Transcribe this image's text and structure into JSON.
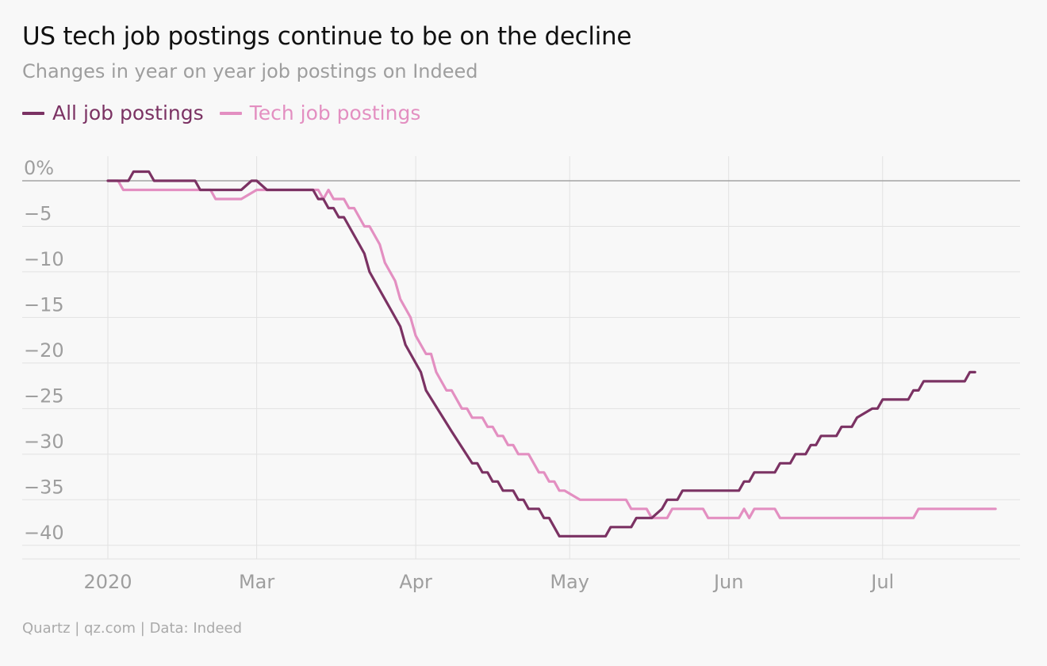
{
  "header": {
    "title": "US tech job postings continue to be on the decline",
    "subtitle": "Changes in year on year job postings on Indeed"
  },
  "footer": {
    "credit": "Quartz | qz.com | Data: Indeed"
  },
  "colors": {
    "all": "#7b3263",
    "tech": "#e38fc1",
    "grid": "#e2e2e2",
    "zero": "#a4a4a4",
    "axis_text": "#9e9e9e",
    "background": "#f8f8f8"
  },
  "chart_data": {
    "type": "line",
    "title": "US tech job postings continue to be on the decline",
    "subtitle": "Changes in year on year job postings on Indeed",
    "xlabel": "",
    "ylabel": "",
    "x_range": [
      "2020-02-01",
      "2020-07-25"
    ],
    "ylim": [
      -41.5,
      2
    ],
    "y_ticks": [
      0,
      -5,
      -10,
      -15,
      -20,
      -25,
      -30,
      -35,
      -40
    ],
    "y_tick_labels": [
      "0%",
      "−5",
      "−10",
      "−15",
      "−20",
      "−25",
      "−30",
      "−35",
      "−40"
    ],
    "x_ticks": [
      "2020-02-01",
      "2020-03-01",
      "2020-04-01",
      "2020-05-01",
      "2020-06-01",
      "2020-07-01"
    ],
    "x_tick_labels": [
      "2020",
      "Mar",
      "Apr",
      "May",
      "Jun",
      "Jul"
    ],
    "grid": true,
    "legend": "top-left",
    "series": [
      {
        "name": "All job postings",
        "color": "#7b3263",
        "points": [
          [
            "2020-02-01",
            0
          ],
          [
            "2020-02-05",
            0
          ],
          [
            "2020-02-06",
            1
          ],
          [
            "2020-02-09",
            1
          ],
          [
            "2020-02-10",
            0
          ],
          [
            "2020-02-18",
            0
          ],
          [
            "2020-02-19",
            -1
          ],
          [
            "2020-02-27",
            -1
          ],
          [
            "2020-02-29",
            0
          ],
          [
            "2020-03-01",
            0
          ],
          [
            "2020-03-03",
            -1
          ],
          [
            "2020-03-12",
            -1
          ],
          [
            "2020-03-13",
            -2
          ],
          [
            "2020-03-14",
            -2
          ],
          [
            "2020-03-15",
            -3
          ],
          [
            "2020-03-16",
            -3
          ],
          [
            "2020-03-17",
            -4
          ],
          [
            "2020-03-18",
            -4
          ],
          [
            "2020-03-21",
            -7
          ],
          [
            "2020-03-22",
            -8
          ],
          [
            "2020-03-23",
            -10
          ],
          [
            "2020-03-25",
            -12
          ],
          [
            "2020-03-27",
            -14
          ],
          [
            "2020-03-29",
            -16
          ],
          [
            "2020-03-30",
            -18
          ],
          [
            "2020-04-01",
            -20
          ],
          [
            "2020-04-02",
            -21
          ],
          [
            "2020-04-03",
            -23
          ],
          [
            "2020-04-08",
            -27.5
          ],
          [
            "2020-04-12",
            -31
          ],
          [
            "2020-04-13",
            -31
          ],
          [
            "2020-04-14",
            -32
          ],
          [
            "2020-04-15",
            -32
          ],
          [
            "2020-04-16",
            -33
          ],
          [
            "2020-04-17",
            -33
          ],
          [
            "2020-04-18",
            -34
          ],
          [
            "2020-04-20",
            -34
          ],
          [
            "2020-04-21",
            -35
          ],
          [
            "2020-04-22",
            -35
          ],
          [
            "2020-04-23",
            -36
          ],
          [
            "2020-04-25",
            -36
          ],
          [
            "2020-04-26",
            -37
          ],
          [
            "2020-04-27",
            -37
          ],
          [
            "2020-04-29",
            -39
          ],
          [
            "2020-05-08",
            -39
          ],
          [
            "2020-05-09",
            -38
          ],
          [
            "2020-05-13",
            -38
          ],
          [
            "2020-05-14",
            -37
          ],
          [
            "2020-05-17",
            -37
          ],
          [
            "2020-05-19",
            -36
          ],
          [
            "2020-05-20",
            -35
          ],
          [
            "2020-05-22",
            -35
          ],
          [
            "2020-05-23",
            -34
          ],
          [
            "2020-05-30",
            -34
          ],
          [
            "2020-06-03",
            -34
          ],
          [
            "2020-06-04",
            -33
          ],
          [
            "2020-06-05",
            -33
          ],
          [
            "2020-06-06",
            -32
          ],
          [
            "2020-06-10",
            -32
          ],
          [
            "2020-06-11",
            -31
          ],
          [
            "2020-06-13",
            -31
          ],
          [
            "2020-06-14",
            -30
          ],
          [
            "2020-06-16",
            -30
          ],
          [
            "2020-06-17",
            -29
          ],
          [
            "2020-06-18",
            -29
          ],
          [
            "2020-06-19",
            -28
          ],
          [
            "2020-06-22",
            -28
          ],
          [
            "2020-06-23",
            -27
          ],
          [
            "2020-06-25",
            -27
          ],
          [
            "2020-06-26",
            -26
          ],
          [
            "2020-06-29",
            -25
          ],
          [
            "2020-06-30",
            -25
          ],
          [
            "2020-07-01",
            -24
          ],
          [
            "2020-07-06",
            -24
          ],
          [
            "2020-07-07",
            -23
          ],
          [
            "2020-07-08",
            -23
          ],
          [
            "2020-07-09",
            -22
          ],
          [
            "2020-07-17",
            -22
          ],
          [
            "2020-07-18",
            -21
          ],
          [
            "2020-07-19",
            -21
          ]
        ]
      },
      {
        "name": "Tech job postings",
        "color": "#e38fc1",
        "points": [
          [
            "2020-02-01",
            0
          ],
          [
            "2020-02-03",
            0
          ],
          [
            "2020-02-04",
            -1
          ],
          [
            "2020-02-21",
            -1
          ],
          [
            "2020-02-22",
            -2
          ],
          [
            "2020-02-27",
            -2
          ],
          [
            "2020-03-01",
            -1
          ],
          [
            "2020-03-13",
            -1
          ],
          [
            "2020-03-14",
            -2
          ],
          [
            "2020-03-15",
            -1
          ],
          [
            "2020-03-16",
            -2
          ],
          [
            "2020-03-18",
            -2
          ],
          [
            "2020-03-19",
            -3
          ],
          [
            "2020-03-20",
            -3
          ],
          [
            "2020-03-22",
            -5
          ],
          [
            "2020-03-23",
            -5
          ],
          [
            "2020-03-25",
            -7
          ],
          [
            "2020-03-26",
            -9
          ],
          [
            "2020-03-28",
            -11
          ],
          [
            "2020-03-29",
            -13
          ],
          [
            "2020-03-31",
            -15
          ],
          [
            "2020-04-01",
            -17
          ],
          [
            "2020-04-03",
            -19
          ],
          [
            "2020-04-04",
            -19
          ],
          [
            "2020-04-05",
            -21
          ],
          [
            "2020-04-07",
            -23
          ],
          [
            "2020-04-08",
            -23
          ],
          [
            "2020-04-10",
            -25
          ],
          [
            "2020-04-11",
            -25
          ],
          [
            "2020-04-12",
            -26
          ],
          [
            "2020-04-14",
            -26
          ],
          [
            "2020-04-15",
            -27
          ],
          [
            "2020-04-16",
            -27
          ],
          [
            "2020-04-17",
            -28
          ],
          [
            "2020-04-18",
            -28
          ],
          [
            "2020-04-19",
            -29
          ],
          [
            "2020-04-20",
            -29
          ],
          [
            "2020-04-21",
            -30
          ],
          [
            "2020-04-23",
            -30
          ],
          [
            "2020-04-25",
            -32
          ],
          [
            "2020-04-26",
            -32
          ],
          [
            "2020-04-27",
            -33
          ],
          [
            "2020-04-28",
            -33
          ],
          [
            "2020-04-29",
            -34
          ],
          [
            "2020-04-30",
            -34
          ],
          [
            "2020-05-03",
            -35
          ],
          [
            "2020-05-12",
            -35
          ],
          [
            "2020-05-13",
            -36
          ],
          [
            "2020-05-16",
            -36
          ],
          [
            "2020-05-17",
            -37
          ],
          [
            "2020-05-20",
            -37
          ],
          [
            "2020-05-21",
            -36
          ],
          [
            "2020-05-27",
            -36
          ],
          [
            "2020-05-28",
            -37
          ],
          [
            "2020-06-03",
            -37
          ],
          [
            "2020-06-04",
            -36
          ],
          [
            "2020-06-05",
            -37
          ],
          [
            "2020-06-06",
            -36
          ],
          [
            "2020-06-10",
            -36
          ],
          [
            "2020-06-11",
            -37
          ],
          [
            "2020-07-07",
            -37
          ],
          [
            "2020-07-08",
            -36
          ],
          [
            "2020-07-23",
            -36
          ]
        ]
      }
    ]
  }
}
